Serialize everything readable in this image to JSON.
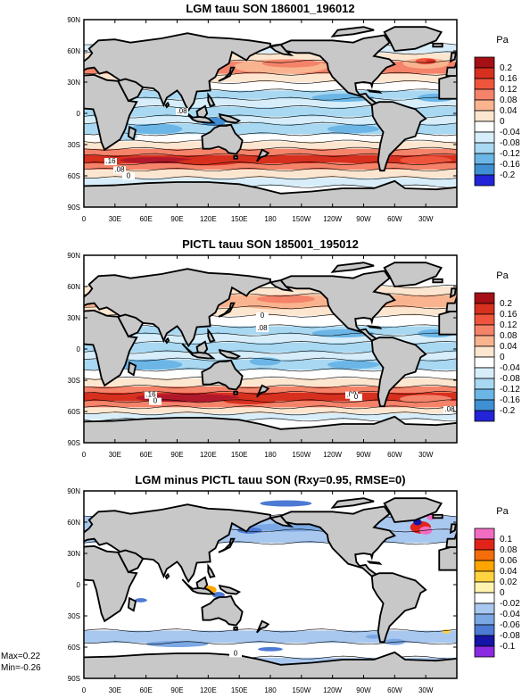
{
  "lat_ticks": [
    "90N",
    "60N",
    "30N",
    "0",
    "30S",
    "60S",
    "90S"
  ],
  "lon_ticks": [
    "0",
    "30E",
    "60E",
    "90E",
    "120E",
    "150E",
    "180",
    "150W",
    "120W",
    "90W",
    "60W",
    "30W"
  ],
  "panels": [
    {
      "title": "LGM tauu SON 186001_196012",
      "unit": "Pa",
      "levels": [
        "0.2",
        "0.16",
        "0.12",
        "0.08",
        "0.04",
        "0",
        "-0.04",
        "-0.08",
        "-0.12",
        "-0.16",
        "-0.2"
      ],
      "colors": [
        "#b2182b",
        "#d7301f",
        "#ef553c",
        "#f4836a",
        "#f9b48f",
        "#fde6d0",
        "#ffffff",
        "#d7eefa",
        "#a8d8f2",
        "#6bb6e6",
        "#3f8fd4",
        "#2a5ccc",
        "#2323d8"
      ],
      "contour_labels": [
        ".08",
        ".16",
        ".08",
        "0"
      ]
    },
    {
      "title": "PICTL tauu SON 185001_195012",
      "unit": "Pa",
      "levels": [
        "0.2",
        "0.16",
        "0.12",
        "0.08",
        "0.04",
        "0",
        "-0.04",
        "-0.08",
        "-0.12",
        "-0.16",
        "-0.2"
      ],
      "colors": [
        "#b2182b",
        "#d7301f",
        "#ef553c",
        "#f4836a",
        "#f9b48f",
        "#fde6d0",
        "#ffffff",
        "#d7eefa",
        "#a8d8f2",
        "#6bb6e6",
        "#3f8fd4",
        "#2a5ccc",
        "#2323d8"
      ],
      "contour_labels": [
        "0",
        ".08",
        ".16",
        ".08",
        ".08",
        "0",
        "0"
      ]
    },
    {
      "title": "LGM minus PICTL tauu SON (Rxy=0.95, RMSE=0)",
      "unit": "Pa",
      "levels": [
        "0.1",
        "0.08",
        "0.06",
        "0.04",
        "0.02",
        "0",
        "-0.02",
        "-0.04",
        "-0.06",
        "-0.08",
        "-0.1"
      ],
      "colors": [
        "#f26dc2",
        "#e2231a",
        "#f46d0a",
        "#ffa500",
        "#ffd23f",
        "#fff3b0",
        "#ffffff",
        "#a9c8f0",
        "#7aa8e4",
        "#4d7ad4",
        "#2a4fc8",
        "#1414a8",
        "#8a2be2"
      ],
      "contour_labels": [
        "0"
      ]
    }
  ],
  "stats": {
    "max": "Max=0.22",
    "min": "Min=-0.26"
  },
  "colors": {
    "land": "#c8c8c8",
    "ocean": "#ffffff",
    "coast": "#000000"
  }
}
